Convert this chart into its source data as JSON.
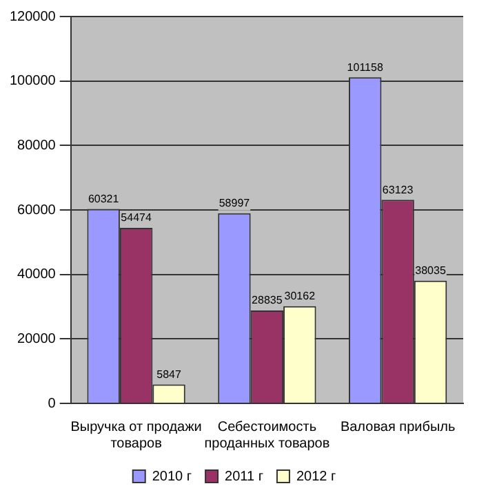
{
  "chart_data": {
    "type": "bar",
    "categories": [
      "Выручка от продажи товаров",
      "Себестоимость проданных товаров",
      "Валовая прибыль"
    ],
    "series": [
      {
        "name": "2010 г",
        "color": "#9999ff",
        "values": [
          60321,
          58997,
          101158
        ]
      },
      {
        "name": "2011 г",
        "color": "#993366",
        "values": [
          54474,
          28835,
          63123
        ]
      },
      {
        "name": "2012 г",
        "color": "#ffffcc",
        "values": [
          5847,
          30162,
          38035
        ]
      }
    ],
    "ylim": [
      0,
      120000
    ],
    "yticks": [
      0,
      20000,
      40000,
      60000,
      80000,
      100000,
      120000
    ],
    "grid": "y",
    "legend": "bottom",
    "data_labels": true
  }
}
